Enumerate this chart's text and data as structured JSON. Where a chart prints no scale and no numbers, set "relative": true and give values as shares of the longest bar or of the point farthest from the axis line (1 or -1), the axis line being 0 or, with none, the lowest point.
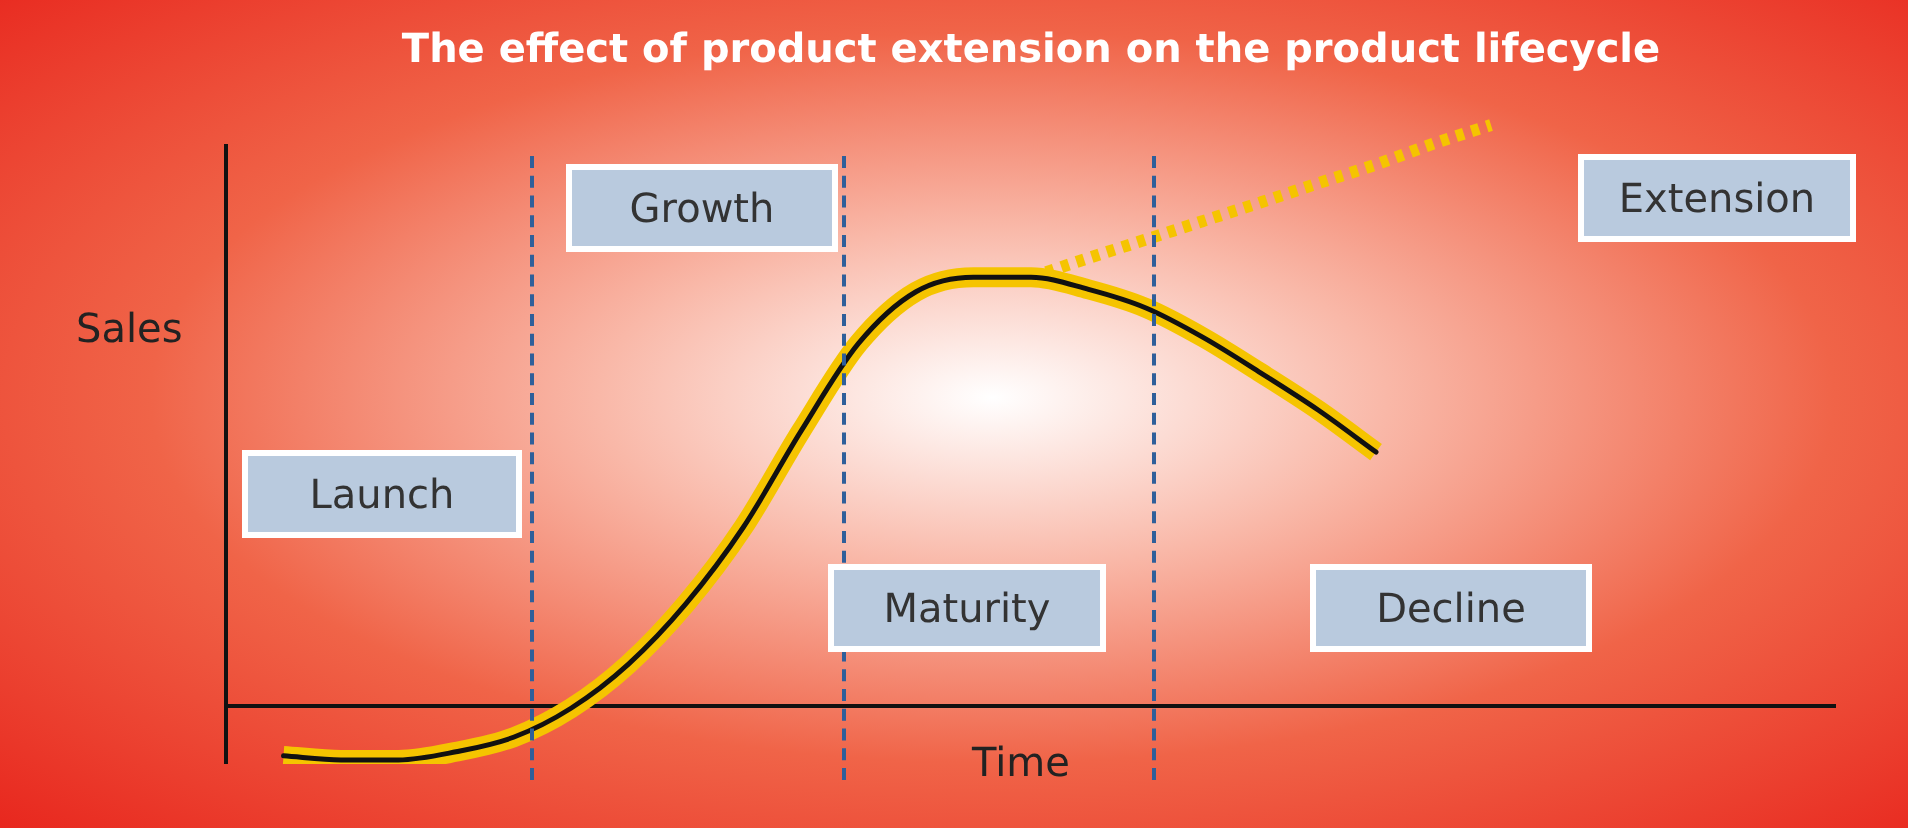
{
  "chart_data": {
    "type": "line",
    "title": "The effect of product extension on the product lifecycle",
    "xlabel": "Time",
    "ylabel": "Sales",
    "relative": true,
    "legend": false,
    "marker": "none",
    "categories": [
      null,
      null,
      null,
      null,
      null,
      null,
      null,
      null,
      null,
      null,
      null,
      null,
      null,
      null,
      null,
      null,
      null,
      null,
      null,
      null,
      null,
      null,
      null,
      null,
      null,
      null,
      null,
      null,
      null
    ],
    "series": [
      {
        "color": "#f5c400",
        "line_style": "solid",
        "values": [
          null,
          -0.086,
          -0.093,
          -0.093,
          -0.079,
          -0.054,
          -0.004,
          0.072,
          0.176,
          0.308,
          0.473,
          0.624,
          0.713,
          0.738,
          0.738,
          0.717,
          0.685,
          0.634,
          0.573,
          0.509,
          0.437,
          null,
          null,
          null,
          null,
          null,
          null,
          null,
          null
        ]
      },
      {
        "color": "#f5c400",
        "line_style": "dotted",
        "values": [
          null,
          null,
          null,
          null,
          null,
          null,
          null,
          null,
          null,
          null,
          null,
          null,
          null,
          null,
          0.738,
          0.771,
          0.803,
          0.835,
          0.867,
          0.9,
          0.932,
          0.968,
          1,
          null,
          null,
          null,
          null,
          null,
          null
        ]
      }
    ],
    "annotations": [
      "Growth",
      "Extension",
      "Launch",
      "Maturity",
      "Decline"
    ]
  }
}
